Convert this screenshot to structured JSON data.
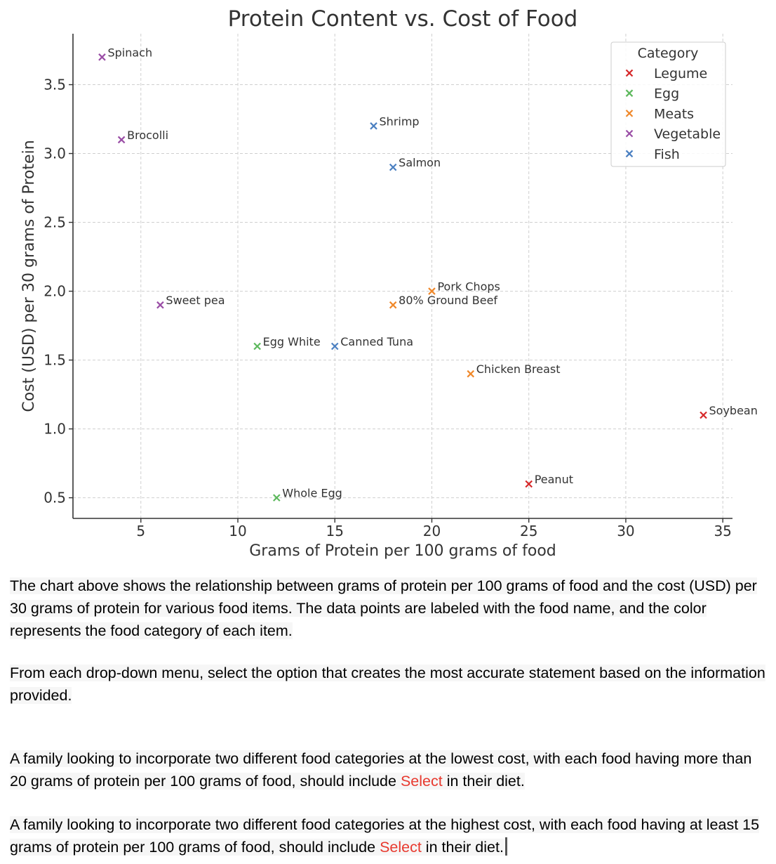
{
  "chart_data": {
    "type": "scatter",
    "title": "Protein Content vs. Cost of Food",
    "xlabel": "Grams of Protein per 100 grams of food",
    "ylabel": "Cost (USD) per 30 grams of Protein",
    "xlim": [
      1.5,
      35.5
    ],
    "ylim": [
      0.35,
      3.87
    ],
    "xticks": [
      5,
      10,
      15,
      20,
      25,
      30,
      35
    ],
    "yticks": [
      0.5,
      1.0,
      1.5,
      2.0,
      2.5,
      3.0,
      3.5
    ],
    "grid": true,
    "legend": {
      "title": "Category",
      "placement": "top-right",
      "entries": [
        "Legume",
        "Egg",
        "Meats",
        "Vegetable",
        "Fish"
      ]
    },
    "category_colors": {
      "Legume": "#d62728",
      "Egg": "#5cb85c",
      "Meats": "#f0882a",
      "Vegetable": "#9a4ea6",
      "Fish": "#4a7fc1"
    },
    "points": [
      {
        "label": "Spinach",
        "x": 3,
        "y": 3.7,
        "category": "Vegetable"
      },
      {
        "label": "Brocolli",
        "x": 4,
        "y": 3.1,
        "category": "Vegetable"
      },
      {
        "label": "Sweet pea",
        "x": 6,
        "y": 1.9,
        "category": "Vegetable"
      },
      {
        "label": "Egg White",
        "x": 11,
        "y": 1.6,
        "category": "Egg"
      },
      {
        "label": "Whole Egg",
        "x": 12,
        "y": 0.5,
        "category": "Egg"
      },
      {
        "label": "Canned Tuna",
        "x": 15,
        "y": 1.6,
        "category": "Fish"
      },
      {
        "label": "Shrimp",
        "x": 17,
        "y": 3.2,
        "category": "Fish"
      },
      {
        "label": "Salmon",
        "x": 18,
        "y": 2.9,
        "category": "Fish"
      },
      {
        "label": "80% Ground Beef",
        "x": 18,
        "y": 1.9,
        "category": "Meats"
      },
      {
        "label": "Pork Chops",
        "x": 20,
        "y": 2.0,
        "category": "Meats"
      },
      {
        "label": "Chicken Breast",
        "x": 22,
        "y": 1.4,
        "category": "Meats"
      },
      {
        "label": "Peanut",
        "x": 25,
        "y": 0.6,
        "category": "Legume"
      },
      {
        "label": "Soybean",
        "x": 34,
        "y": 1.1,
        "category": "Legume"
      }
    ]
  },
  "text": {
    "paragraph1": "The chart above shows the relationship between grams of protein per 100 grams of food and the cost (USD) per 30 grams of protein for various food items. The data points are labeled with the food name, and the color represents the food category of each item.",
    "paragraph2": "From each drop-down menu, select the option that creates the most accurate statement based on the information provided.",
    "q1_before": "A family looking to incorporate two different food categories at the lowest cost, with each food having more than 20 grams of protein per 100 grams of food, should include ",
    "q1_select": "Select",
    "q1_after": " in their diet.",
    "q2_before": "A family looking to incorporate two different food categories at the highest cost, with each food having at least 15 grams of protein per 100 grams of food, should include ",
    "q2_select": "Select",
    "q2_after": " in their diet."
  }
}
